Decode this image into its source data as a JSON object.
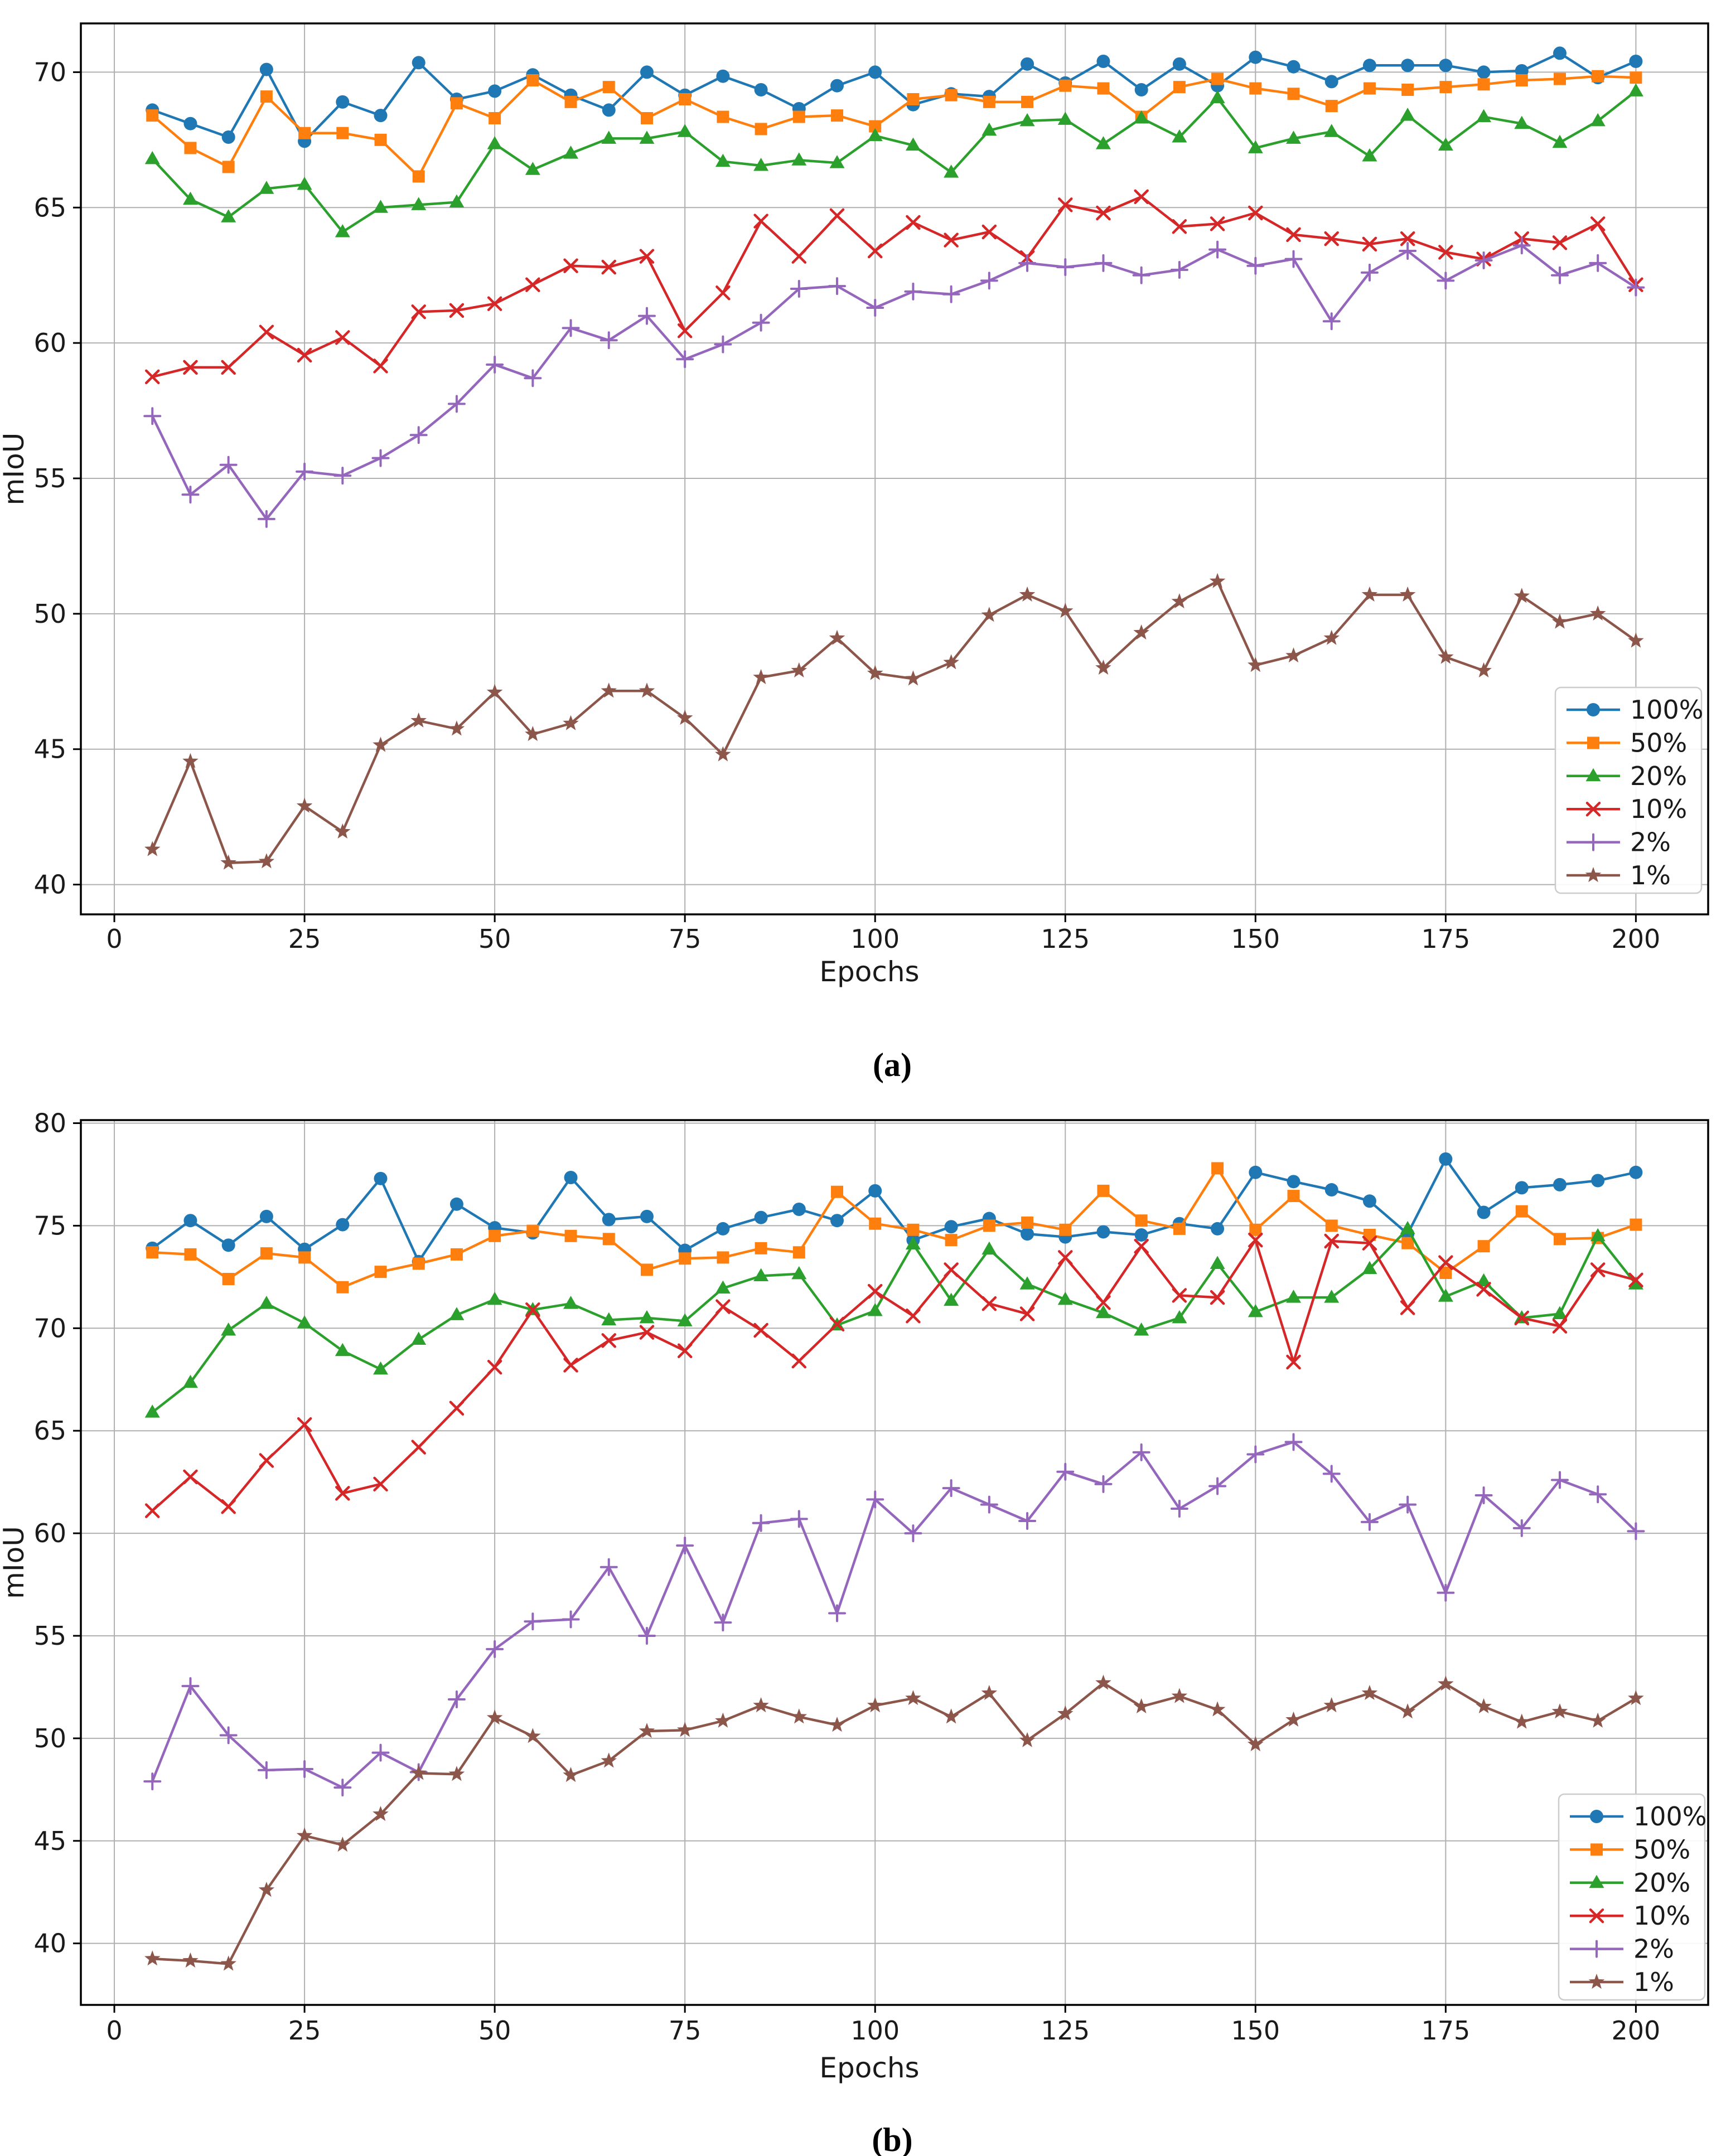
{
  "figure": {
    "ylabel": "mIoU",
    "xlabel": "Epochs",
    "captions": {
      "a": "(a)",
      "b": "(b)"
    },
    "legend_labels": [
      "100%",
      "50%",
      "20%",
      "10%",
      "2%",
      "1%"
    ],
    "colors": {
      "p100": "#1f77b4",
      "p50": "#ff7f0e",
      "p20": "#2ca02c",
      "p10": "#d62728",
      "p2": "#9467bd",
      "p1": "#8c564b",
      "grid": "#b0b0b0",
      "spine": "#000000"
    }
  },
  "chart_data": [
    {
      "id": "a",
      "type": "line",
      "caption": "(a)",
      "xlabel": "Epochs",
      "ylabel": "mIoU",
      "grid": true,
      "legend_position": "lower right",
      "xticks": [
        0,
        25,
        50,
        75,
        100,
        125,
        150,
        175,
        200
      ],
      "yticks": [
        40,
        45,
        50,
        55,
        60,
        65,
        70
      ],
      "xlim": [
        -4.4,
        209.5
      ],
      "ylim": [
        38.9,
        71.8
      ],
      "x": [
        5,
        10,
        15,
        20,
        25,
        30,
        35,
        40,
        45,
        50,
        55,
        60,
        65,
        70,
        75,
        80,
        85,
        90,
        95,
        100,
        105,
        110,
        115,
        120,
        125,
        130,
        135,
        140,
        145,
        150,
        155,
        160,
        165,
        170,
        175,
        180,
        185,
        190,
        195,
        200
      ],
      "series": [
        {
          "name": "100%",
          "color": "#1f77b4",
          "marker": "circle",
          "values": [
            68.6,
            68.1,
            67.6,
            70.1,
            67.45,
            68.9,
            68.4,
            70.35,
            69.0,
            69.3,
            69.9,
            69.15,
            68.6,
            70.0,
            69.15,
            69.85,
            69.35,
            68.65,
            69.5,
            70.0,
            68.8,
            69.2,
            69.1,
            70.3,
            69.6,
            70.4,
            69.35,
            70.3,
            69.5,
            70.55,
            70.2,
            69.65,
            70.25,
            70.25,
            70.25,
            70.0,
            70.05,
            70.7,
            69.8,
            70.4
          ]
        },
        {
          "name": "50%",
          "color": "#ff7f0e",
          "marker": "square",
          "values": [
            68.4,
            67.2,
            66.5,
            69.1,
            67.75,
            67.75,
            67.5,
            66.15,
            68.85,
            68.3,
            69.7,
            68.9,
            69.45,
            68.3,
            69.0,
            68.35,
            67.9,
            68.35,
            68.4,
            68.0,
            69.0,
            69.15,
            68.9,
            68.9,
            69.5,
            69.4,
            68.35,
            69.45,
            69.75,
            69.4,
            69.2,
            68.75,
            69.4,
            69.35,
            69.45,
            69.55,
            69.7,
            69.75,
            69.85,
            69.8
          ]
        },
        {
          "name": "20%",
          "color": "#2ca02c",
          "marker": "triangle",
          "values": [
            66.8,
            65.3,
            64.65,
            65.7,
            65.85,
            64.1,
            65.0,
            65.1,
            65.2,
            67.35,
            66.4,
            67.0,
            67.55,
            67.55,
            67.8,
            66.7,
            66.55,
            66.75,
            66.65,
            67.65,
            67.3,
            66.3,
            67.85,
            68.2,
            68.25,
            67.35,
            68.3,
            67.6,
            69.05,
            67.2,
            67.55,
            67.8,
            66.9,
            68.4,
            67.3,
            68.35,
            68.1,
            67.4,
            68.2,
            69.3
          ]
        },
        {
          "name": "10%",
          "color": "#d62728",
          "marker": "x",
          "values": [
            58.75,
            59.1,
            59.1,
            60.4,
            59.55,
            60.2,
            59.15,
            61.15,
            61.2,
            61.45,
            62.15,
            62.85,
            62.8,
            63.2,
            60.45,
            61.85,
            64.5,
            63.2,
            64.7,
            63.4,
            64.45,
            63.8,
            64.1,
            63.15,
            65.1,
            64.8,
            65.4,
            64.3,
            64.4,
            64.8,
            64.0,
            63.85,
            63.65,
            63.85,
            63.35,
            63.1,
            63.85,
            63.7,
            64.4,
            62.15
          ]
        },
        {
          "name": "2%",
          "color": "#9467bd",
          "marker": "plus",
          "values": [
            57.3,
            54.4,
            55.5,
            53.5,
            55.25,
            55.1,
            55.75,
            56.6,
            57.75,
            59.2,
            58.7,
            60.55,
            60.1,
            61.0,
            59.4,
            59.95,
            60.75,
            62.0,
            62.1,
            61.3,
            61.9,
            61.8,
            62.3,
            62.95,
            62.8,
            62.95,
            62.5,
            62.7,
            63.45,
            62.85,
            63.1,
            60.8,
            62.6,
            63.4,
            62.3,
            63.05,
            63.6,
            62.5,
            62.95,
            62.05
          ]
        },
        {
          "name": "1%",
          "color": "#8c564b",
          "marker": "star",
          "values": [
            41.3,
            44.55,
            40.8,
            40.85,
            42.9,
            41.95,
            45.15,
            46.05,
            45.75,
            47.1,
            45.55,
            45.95,
            47.15,
            47.15,
            46.15,
            44.8,
            47.65,
            47.9,
            49.1,
            47.8,
            47.6,
            48.2,
            49.95,
            50.7,
            50.1,
            48.0,
            49.3,
            50.45,
            51.2,
            48.1,
            48.45,
            49.1,
            50.7,
            50.7,
            48.4,
            47.9,
            50.65,
            49.7,
            50.0,
            49.0
          ]
        }
      ]
    },
    {
      "id": "b",
      "type": "line",
      "caption": "(b)",
      "xlabel": "Epochs",
      "ylabel": "mIoU",
      "grid": true,
      "legend_position": "lower right",
      "xticks": [
        0,
        25,
        50,
        75,
        100,
        125,
        150,
        175,
        200
      ],
      "yticks": [
        40,
        45,
        50,
        55,
        60,
        65,
        70,
        75,
        80
      ],
      "xlim": [
        -4.4,
        209.5
      ],
      "ylim": [
        37.0,
        80.15
      ],
      "x": [
        5,
        10,
        15,
        20,
        25,
        30,
        35,
        40,
        45,
        50,
        55,
        60,
        65,
        70,
        75,
        80,
        85,
        90,
        95,
        100,
        105,
        110,
        115,
        120,
        125,
        130,
        135,
        140,
        145,
        150,
        155,
        160,
        165,
        170,
        175,
        180,
        185,
        190,
        195,
        200
      ],
      "series": [
        {
          "name": "100%",
          "color": "#1f77b4",
          "marker": "circle",
          "values": [
            73.9,
            75.25,
            74.05,
            75.45,
            73.85,
            75.05,
            77.3,
            73.25,
            76.05,
            74.9,
            74.65,
            77.35,
            75.3,
            75.45,
            73.8,
            74.85,
            75.4,
            75.8,
            75.25,
            76.7,
            74.3,
            74.95,
            75.35,
            74.6,
            74.45,
            74.7,
            74.55,
            75.1,
            74.85,
            77.6,
            77.15,
            76.75,
            76.2,
            74.6,
            78.25,
            75.65,
            76.85,
            77.0,
            77.2,
            77.6
          ]
        },
        {
          "name": "50%",
          "color": "#ff7f0e",
          "marker": "square",
          "values": [
            73.7,
            73.6,
            72.4,
            73.65,
            73.45,
            72.0,
            72.75,
            73.15,
            73.6,
            74.5,
            74.75,
            74.5,
            74.35,
            72.85,
            73.4,
            73.45,
            73.9,
            73.7,
            76.65,
            75.1,
            74.8,
            74.3,
            75.0,
            75.15,
            74.8,
            76.7,
            75.25,
            74.85,
            77.8,
            74.8,
            76.45,
            75.0,
            74.55,
            74.15,
            72.7,
            74.0,
            75.7,
            74.35,
            74.4,
            75.05
          ]
        },
        {
          "name": "20%",
          "color": "#2ca02c",
          "marker": "triangle",
          "values": [
            65.9,
            67.35,
            69.9,
            71.2,
            70.25,
            68.9,
            68.0,
            69.45,
            70.65,
            71.4,
            70.9,
            71.2,
            70.4,
            70.5,
            70.35,
            71.95,
            72.55,
            72.65,
            70.15,
            70.85,
            74.1,
            71.35,
            73.85,
            72.15,
            71.4,
            70.75,
            69.9,
            70.5,
            73.15,
            70.8,
            71.5,
            71.5,
            72.9,
            74.85,
            71.55,
            72.3,
            70.5,
            70.7,
            74.5,
            72.15
          ]
        },
        {
          "name": "10%",
          "color": "#d62728",
          "marker": "x",
          "values": [
            61.1,
            62.75,
            61.3,
            63.55,
            65.3,
            61.95,
            62.4,
            64.2,
            66.1,
            68.1,
            70.9,
            68.2,
            69.4,
            69.8,
            68.9,
            71.05,
            69.9,
            68.4,
            70.2,
            71.8,
            70.6,
            72.85,
            71.2,
            70.7,
            73.45,
            71.25,
            74.0,
            71.6,
            71.5,
            74.3,
            68.35,
            74.25,
            74.15,
            71.0,
            73.2,
            71.9,
            70.5,
            70.1,
            72.85,
            72.35
          ]
        },
        {
          "name": "2%",
          "color": "#9467bd",
          "marker": "plus",
          "values": [
            47.9,
            52.55,
            50.15,
            48.45,
            48.5,
            47.6,
            49.3,
            48.35,
            51.9,
            54.35,
            55.7,
            55.8,
            58.35,
            55.0,
            59.4,
            55.65,
            60.5,
            60.7,
            56.1,
            61.65,
            60.0,
            62.2,
            61.4,
            60.6,
            63.0,
            62.4,
            63.95,
            61.2,
            62.3,
            63.85,
            64.45,
            62.9,
            60.55,
            61.4,
            57.1,
            61.85,
            60.25,
            62.6,
            61.9,
            60.1
          ]
        },
        {
          "name": "1%",
          "color": "#8c564b",
          "marker": "star",
          "values": [
            39.25,
            39.15,
            39.0,
            42.6,
            45.25,
            44.8,
            46.3,
            48.3,
            48.25,
            51.0,
            50.1,
            48.2,
            48.9,
            50.35,
            50.4,
            50.85,
            51.6,
            51.05,
            50.65,
            51.6,
            51.95,
            51.05,
            52.2,
            49.9,
            51.2,
            52.7,
            51.55,
            52.05,
            51.4,
            49.7,
            50.9,
            51.6,
            52.2,
            51.3,
            52.65,
            51.55,
            50.8,
            51.3,
            50.85,
            51.95
          ]
        }
      ]
    }
  ]
}
